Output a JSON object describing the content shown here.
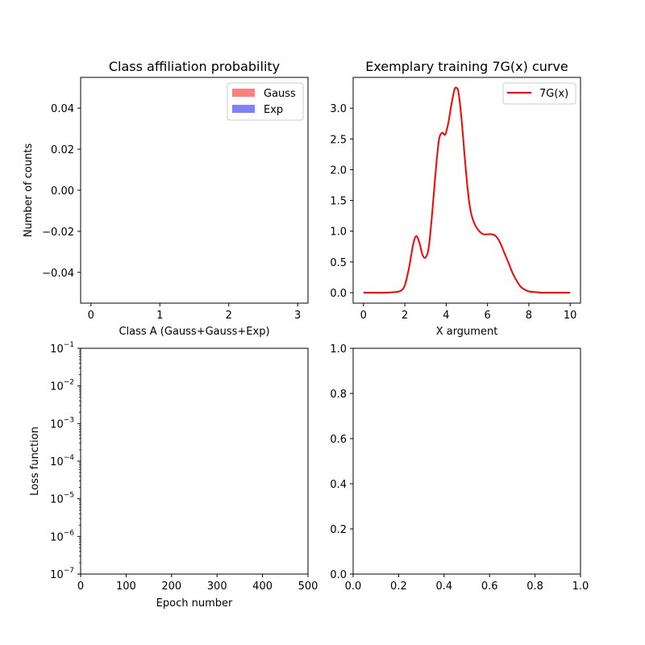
{
  "chart_data": [
    {
      "type": "bar",
      "title": "Class affiliation probability",
      "xlabel": "Class A (Gauss+Gauss+Exp)",
      "ylabel": "Number of counts",
      "xlim": [
        -0.15,
        3.15
      ],
      "ylim": [
        -0.055,
        0.055
      ],
      "xticks": [
        0,
        1,
        2,
        3
      ],
      "yticks": [
        -0.04,
        -0.02,
        0.0,
        0.02,
        0.04
      ],
      "ytick_labels": [
        "−0.04",
        "−0.02",
        "0.00",
        "0.02",
        "0.04"
      ],
      "legend_position": "top-right",
      "series": [
        {
          "name": "Gauss",
          "color": "#ff7f7f",
          "values": []
        },
        {
          "name": "Exp",
          "color": "#7f7fff",
          "values": []
        }
      ]
    },
    {
      "type": "line",
      "title": "Exemplary training 7G(x) curve",
      "xlabel": "X argument",
      "ylabel": "",
      "xlim": [
        -0.5,
        10.5
      ],
      "ylim": [
        -0.17,
        3.5
      ],
      "xticks": [
        0,
        2,
        4,
        6,
        8,
        10
      ],
      "yticks": [
        0.0,
        0.5,
        1.0,
        1.5,
        2.0,
        2.5,
        3.0
      ],
      "ytick_labels": [
        "0.0",
        "0.5",
        "1.0",
        "1.5",
        "2.0",
        "2.5",
        "3.0"
      ],
      "legend_position": "top-right",
      "series": [
        {
          "name": "7G(x)",
          "color": "#ff0000",
          "x": [
            0,
            0.5,
            1.0,
            1.5,
            1.8,
            2.0,
            2.2,
            2.4,
            2.55,
            2.7,
            2.85,
            3.0,
            3.15,
            3.3,
            3.5,
            3.65,
            3.8,
            3.95,
            4.1,
            4.25,
            4.4,
            4.5,
            4.6,
            4.75,
            4.9,
            5.05,
            5.2,
            5.4,
            5.6,
            5.8,
            6.0,
            6.2,
            6.4,
            6.6,
            6.8,
            7.0,
            7.2,
            7.4,
            7.6,
            7.8,
            8.0,
            8.3,
            8.6,
            9.0,
            9.5,
            10.0
          ],
          "y": [
            0.0,
            0.0,
            0.0,
            0.01,
            0.03,
            0.12,
            0.4,
            0.78,
            0.92,
            0.82,
            0.62,
            0.57,
            0.72,
            1.2,
            2.0,
            2.48,
            2.6,
            2.57,
            2.75,
            3.05,
            3.3,
            3.33,
            3.25,
            2.8,
            2.2,
            1.65,
            1.3,
            1.1,
            1.0,
            0.95,
            0.95,
            0.95,
            0.92,
            0.82,
            0.66,
            0.5,
            0.33,
            0.2,
            0.1,
            0.05,
            0.02,
            0.01,
            0.0,
            0.0,
            0.0,
            0.0
          ]
        }
      ]
    },
    {
      "type": "line",
      "title": "",
      "xlabel": "Epoch number",
      "ylabel": "Loss function",
      "xscale": "linear",
      "yscale": "log",
      "xlim": [
        0,
        500
      ],
      "ylim": [
        1e-07,
        0.1
      ],
      "xticks": [
        0,
        100,
        200,
        300,
        400,
        500
      ],
      "ytick_exponents": [
        -7,
        -6,
        -5,
        -4,
        -3,
        -2,
        -1
      ],
      "ytick_base": "10",
      "series": []
    },
    {
      "type": "line",
      "title": "",
      "xlabel": "",
      "ylabel": "",
      "xlim": [
        0,
        1
      ],
      "ylim": [
        0,
        1
      ],
      "xticks": [
        0.0,
        0.2,
        0.4,
        0.6,
        0.8,
        1.0
      ],
      "xtick_labels": [
        "0.0",
        "0.2",
        "0.4",
        "0.6",
        "0.8",
        "1.0"
      ],
      "yticks": [
        0.0,
        0.2,
        0.4,
        0.6,
        0.8,
        1.0
      ],
      "ytick_labels": [
        "0.0",
        "0.2",
        "0.4",
        "0.6",
        "0.8",
        "1.0"
      ],
      "series": []
    }
  ]
}
